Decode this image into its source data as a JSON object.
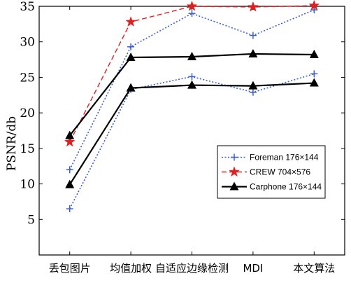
{
  "chart_data": {
    "type": "line",
    "title": "",
    "xlabel": "",
    "ylabel": "PSNR/db",
    "categories": [
      "丢包图片",
      "均值加权",
      "自适应边缘检测",
      "MDI",
      "本文算法"
    ],
    "ylim": [
      0,
      35
    ],
    "yticks": [
      5,
      10,
      15,
      20,
      25,
      30,
      35
    ],
    "grid": false,
    "legend_position": "center-right",
    "series": [
      {
        "name": "Foreman 176×144",
        "group": "foreman",
        "color": "#3a5fcd",
        "dash": "dotted",
        "marker": "plus",
        "values": [
          12,
          29.3,
          34.0,
          30.9,
          34.5
        ]
      },
      {
        "name": "",
        "group": "foreman",
        "color": "#3a5fcd",
        "dash": "dotted",
        "marker": "plus",
        "values": [
          6.5,
          23.3,
          25.1,
          22.9,
          25.5
        ]
      },
      {
        "name": "CREW 704×576",
        "group": "crew",
        "color": "#e02020",
        "dash": "dashed",
        "marker": "star",
        "values": [
          15.9,
          32.8,
          35.0,
          34.9,
          35.1
        ]
      },
      {
        "name": "Carphone 176×144",
        "group": "carphone",
        "color": "#000000",
        "dash": "solid",
        "marker": "triangle",
        "values": [
          16.8,
          27.8,
          27.9,
          28.3,
          28.2
        ]
      },
      {
        "name": "",
        "group": "carphone",
        "color": "#000000",
        "dash": "solid",
        "marker": "triangle",
        "values": [
          9.9,
          23.5,
          23.9,
          23.8,
          24.2
        ]
      }
    ]
  }
}
